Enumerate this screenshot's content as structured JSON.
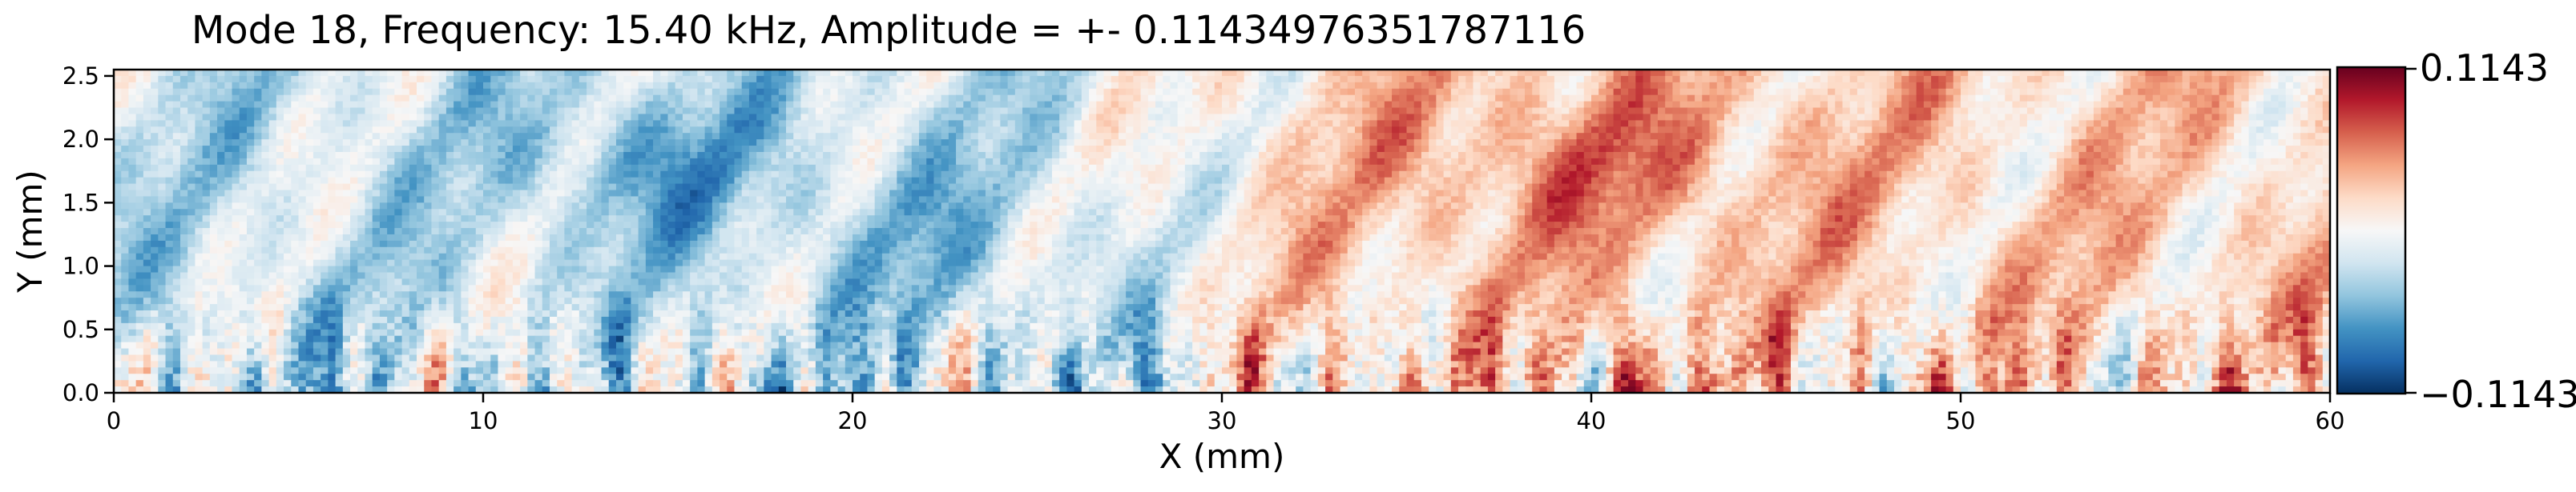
{
  "chart_data": {
    "type": "heatmap",
    "title": "Mode 18, Frequency: 15.40 kHz, Amplitude = +- 0.11434976351787116",
    "xlabel": "X (mm)",
    "ylabel": "Y (mm)",
    "xlim": [
      0,
      60
    ],
    "ylim": [
      0,
      2.55
    ],
    "x_ticks": [
      0,
      10,
      20,
      30,
      40,
      50,
      60
    ],
    "x_tick_labels": [
      "0",
      "10",
      "20",
      "30",
      "40",
      "50",
      "60"
    ],
    "y_ticks": [
      0.0,
      0.5,
      1.0,
      1.5,
      2.0,
      2.5
    ],
    "y_tick_labels": [
      "0.0",
      "0.5",
      "1.0",
      "1.5",
      "2.0",
      "2.5"
    ],
    "colormap": "RdBu_r",
    "value_range": [
      -0.1143,
      0.1143
    ],
    "colorbar": {
      "max_label": "0.1143",
      "min_label": "−0.1143"
    },
    "colors": {
      "high": "#67001f",
      "mid": "#f7f7f7",
      "low": "#053061"
    }
  }
}
